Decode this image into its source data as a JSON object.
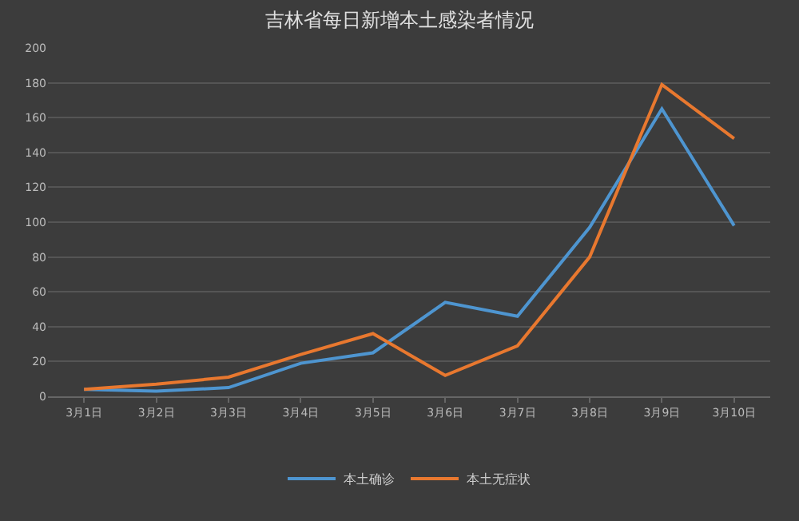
{
  "chart_data": {
    "type": "line",
    "title": "吉林省每日新增本土感染者情况",
    "categories": [
      "3月1日",
      "3月2日",
      "3月3日",
      "3月4日",
      "3月5日",
      "3月6日",
      "3月7日",
      "3月8日",
      "3月9日",
      "3月10日"
    ],
    "series": [
      {
        "name": "本土确诊",
        "color": "#4e95d0",
        "values": [
          4,
          3,
          5,
          19,
          25,
          54,
          46,
          97,
          165,
          98
        ]
      },
      {
        "name": "本土无症状",
        "color": "#e8782f",
        "values": [
          4,
          7,
          11,
          24,
          36,
          12,
          29,
          80,
          179,
          148
        ]
      }
    ],
    "ylim": [
      0,
      200
    ],
    "yticks": [
      0,
      20,
      40,
      60,
      80,
      100,
      120,
      140,
      160,
      180,
      200
    ],
    "grid": "y",
    "legend": "bottom",
    "marker": "none",
    "line_style": "solid"
  }
}
